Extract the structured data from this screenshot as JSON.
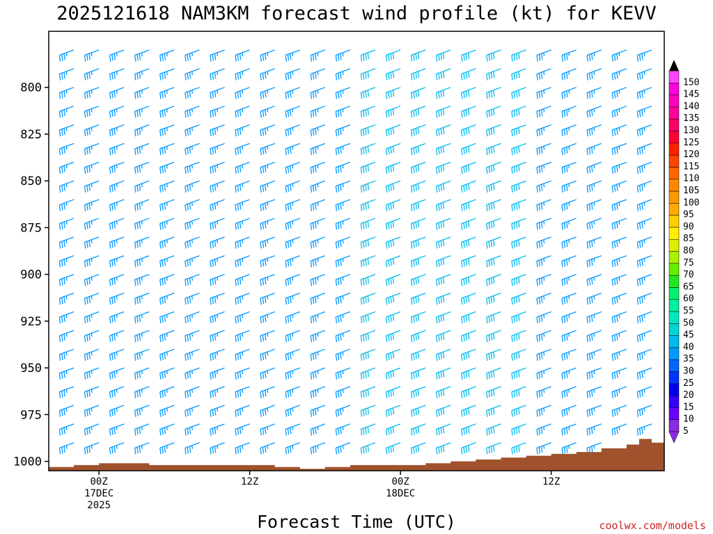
{
  "chart_data": {
    "type": "wind-barb-profile",
    "title": "2025121618 NAM3KM forecast wind profile (kt) for KEVV",
    "xlabel": "Forecast Time (UTC)",
    "credit": "coolwx.com/models",
    "y_axis": {
      "label_units": "hPa",
      "range": [
        1005,
        770
      ],
      "ticks": [
        800,
        825,
        850,
        875,
        900,
        925,
        950,
        975,
        1000
      ]
    },
    "x_axis": {
      "range_hours": [
        -4,
        45
      ],
      "ticks": [
        {
          "hour": 0,
          "lines": [
            "00Z",
            "17DEC",
            "2025"
          ]
        },
        {
          "hour": 12,
          "lines": [
            "12Z"
          ]
        },
        {
          "hour": 24,
          "lines": [
            "00Z",
            "18DEC"
          ]
        },
        {
          "hour": 36,
          "lines": [
            "12Z"
          ]
        },
        {
          "hour": 48,
          "lines": [
            "00Z",
            "19DEC"
          ]
        }
      ]
    },
    "colorbar": {
      "label_units": "kt",
      "levels": [
        5,
        10,
        15,
        20,
        25,
        30,
        35,
        40,
        45,
        50,
        55,
        60,
        65,
        70,
        75,
        80,
        85,
        90,
        95,
        100,
        105,
        110,
        115,
        120,
        125,
        130,
        135,
        140,
        145,
        150
      ],
      "colors": [
        "#8a2be2",
        "#6a00ff",
        "#3300ff",
        "#0000ee",
        "#0033ff",
        "#0066ff",
        "#0099ff",
        "#00bbee",
        "#00d4d4",
        "#00e8c0",
        "#00f0a0",
        "#00f070",
        "#22e822",
        "#66ee00",
        "#aaee00",
        "#ddee00",
        "#ffee00",
        "#ffcc00",
        "#ffaa00",
        "#ff9900",
        "#ff8800",
        "#ff6600",
        "#ff4400",
        "#ff2200",
        "#ff0033",
        "#ff0066",
        "#ff0099",
        "#ff00bb",
        "#ff00dd",
        "#ff44ff"
      ]
    },
    "surface": {
      "color": "#a0522d",
      "hours": [
        -4,
        -2,
        0,
        2,
        4,
        6,
        8,
        10,
        12,
        14,
        16,
        18,
        20,
        22,
        24,
        26,
        28,
        30,
        32,
        34,
        36,
        38,
        40,
        42,
        43,
        44,
        45,
        46,
        48,
        50
      ],
      "pressure": [
        1003,
        1002,
        1001,
        1001,
        1002,
        1002,
        1002,
        1002,
        1002,
        1003,
        1004,
        1003,
        1002,
        1002,
        1002,
        1001,
        1000,
        999,
        998,
        997,
        996,
        995,
        993,
        991,
        988,
        990,
        992,
        994,
        994,
        994
      ]
    },
    "time_hours": [
      -4,
      -2,
      0,
      2,
      4,
      6,
      8,
      10,
      12,
      14,
      16,
      18,
      20,
      22,
      24,
      26,
      28,
      30,
      32,
      34,
      36,
      38,
      40,
      42,
      44,
      46,
      48,
      50
    ],
    "pressure_levels": [
      780,
      790,
      800,
      810,
      820,
      830,
      840,
      850,
      860,
      870,
      880,
      890,
      900,
      910,
      920,
      930,
      940,
      950,
      960,
      970,
      980,
      990
    ],
    "speed_kt": [
      [
        35,
        35,
        35,
        35,
        35,
        35,
        35,
        35,
        35,
        35,
        35,
        35,
        35,
        40,
        40,
        40,
        40,
        40,
        40,
        40,
        35,
        35,
        35,
        35,
        35,
        35,
        35,
        35
      ],
      [
        35,
        35,
        35,
        35,
        35,
        35,
        35,
        35,
        35,
        35,
        35,
        35,
        35,
        40,
        40,
        40,
        40,
        40,
        40,
        40,
        35,
        35,
        35,
        35,
        35,
        35,
        35,
        35
      ],
      [
        35,
        35,
        35,
        35,
        35,
        35,
        35,
        35,
        35,
        35,
        35,
        35,
        35,
        40,
        40,
        40,
        40,
        40,
        40,
        40,
        35,
        35,
        35,
        35,
        35,
        35,
        35,
        35
      ],
      [
        35,
        35,
        35,
        35,
        35,
        35,
        35,
        35,
        35,
        35,
        35,
        35,
        35,
        40,
        40,
        40,
        40,
        40,
        40,
        40,
        35,
        35,
        35,
        35,
        35,
        35,
        35,
        35
      ],
      [
        35,
        35,
        35,
        35,
        35,
        35,
        35,
        35,
        35,
        35,
        35,
        35,
        35,
        40,
        40,
        40,
        40,
        40,
        40,
        40,
        35,
        35,
        35,
        35,
        35,
        35,
        35,
        35
      ],
      [
        35,
        35,
        35,
        35,
        35,
        35,
        35,
        35,
        35,
        35,
        35,
        35,
        35,
        40,
        40,
        40,
        40,
        40,
        40,
        40,
        35,
        35,
        35,
        35,
        35,
        35,
        35,
        35
      ],
      [
        35,
        35,
        35,
        35,
        35,
        35,
        35,
        35,
        35,
        35,
        35,
        35,
        35,
        40,
        40,
        40,
        40,
        40,
        40,
        40,
        35,
        35,
        35,
        35,
        35,
        35,
        35,
        35
      ],
      [
        35,
        35,
        35,
        35,
        35,
        35,
        35,
        35,
        35,
        35,
        35,
        35,
        35,
        40,
        40,
        40,
        40,
        40,
        40,
        40,
        35,
        35,
        35,
        35,
        35,
        35,
        35,
        35
      ],
      [
        35,
        35,
        35,
        35,
        35,
        35,
        35,
        35,
        35,
        35,
        35,
        35,
        35,
        40,
        40,
        40,
        40,
        40,
        40,
        40,
        35,
        35,
        35,
        35,
        35,
        35,
        35,
        35
      ],
      [
        35,
        35,
        35,
        35,
        35,
        35,
        35,
        35,
        35,
        35,
        35,
        35,
        35,
        40,
        40,
        40,
        40,
        40,
        40,
        40,
        35,
        35,
        35,
        35,
        35,
        35,
        35,
        35
      ],
      [
        35,
        35,
        35,
        35,
        35,
        35,
        35,
        35,
        35,
        35,
        35,
        35,
        35,
        40,
        40,
        40,
        40,
        40,
        40,
        40,
        35,
        35,
        35,
        35,
        35,
        35,
        35,
        35
      ],
      [
        35,
        35,
        35,
        35,
        35,
        35,
        35,
        35,
        35,
        35,
        35,
        35,
        35,
        40,
        40,
        40,
        40,
        40,
        40,
        40,
        35,
        35,
        35,
        35,
        35,
        35,
        35,
        35
      ],
      [
        35,
        35,
        35,
        35,
        35,
        35,
        35,
        35,
        35,
        35,
        35,
        35,
        35,
        40,
        40,
        40,
        40,
        40,
        40,
        40,
        35,
        35,
        35,
        35,
        35,
        35,
        35,
        35
      ],
      [
        35,
        35,
        35,
        35,
        35,
        35,
        35,
        35,
        35,
        35,
        35,
        35,
        35,
        40,
        40,
        40,
        40,
        40,
        40,
        40,
        35,
        35,
        35,
        35,
        35,
        35,
        35,
        35
      ],
      [
        35,
        35,
        35,
        35,
        35,
        35,
        35,
        35,
        35,
        35,
        35,
        35,
        35,
        40,
        40,
        40,
        40,
        40,
        40,
        40,
        35,
        35,
        35,
        35,
        35,
        35,
        35,
        35
      ],
      [
        35,
        35,
        35,
        35,
        35,
        35,
        35,
        35,
        35,
        35,
        35,
        35,
        35,
        40,
        40,
        40,
        40,
        40,
        40,
        40,
        35,
        35,
        35,
        35,
        35,
        35,
        35,
        35
      ],
      [
        35,
        35,
        35,
        35,
        35,
        35,
        35,
        35,
        35,
        35,
        35,
        35,
        35,
        40,
        40,
        40,
        40,
        40,
        40,
        40,
        35,
        35,
        35,
        35,
        35,
        35,
        35,
        35
      ],
      [
        35,
        35,
        35,
        35,
        35,
        35,
        35,
        35,
        35,
        35,
        35,
        35,
        35,
        40,
        40,
        40,
        40,
        40,
        40,
        40,
        35,
        35,
        35,
        35,
        35,
        35,
        35,
        35
      ],
      [
        35,
        35,
        35,
        35,
        35,
        35,
        35,
        35,
        35,
        35,
        35,
        35,
        35,
        40,
        40,
        40,
        40,
        40,
        40,
        40,
        35,
        35,
        35,
        35,
        35,
        35,
        35,
        35
      ],
      [
        35,
        35,
        35,
        35,
        35,
        35,
        35,
        35,
        35,
        35,
        35,
        35,
        35,
        40,
        40,
        40,
        40,
        40,
        40,
        40,
        35,
        35,
        35,
        35,
        35,
        35,
        35,
        35
      ],
      [
        35,
        35,
        35,
        35,
        35,
        35,
        35,
        35,
        35,
        35,
        35,
        35,
        35,
        40,
        40,
        40,
        40,
        40,
        40,
        40,
        35,
        35,
        35,
        35,
        35,
        35,
        35,
        35
      ],
      [
        35,
        35,
        35,
        35,
        35,
        35,
        35,
        35,
        35,
        35,
        35,
        35,
        35,
        40,
        40,
        40,
        40,
        40,
        40,
        40,
        35,
        35,
        35,
        35,
        35,
        35,
        35,
        35
      ]
    ],
    "direction_deg": [
      [
        250,
        250,
        250,
        250,
        250,
        250,
        250,
        250,
        250,
        250,
        250,
        250,
        250,
        250,
        250,
        250,
        250,
        250,
        250,
        250,
        250,
        250,
        250,
        250,
        250,
        250,
        250,
        250
      ],
      [
        250,
        250,
        250,
        250,
        250,
        250,
        250,
        250,
        250,
        250,
        250,
        250,
        250,
        250,
        250,
        250,
        250,
        250,
        250,
        250,
        250,
        250,
        250,
        250,
        250,
        250,
        250,
        250
      ],
      [
        250,
        250,
        250,
        250,
        250,
        250,
        250,
        250,
        250,
        250,
        250,
        250,
        250,
        250,
        250,
        250,
        250,
        250,
        250,
        250,
        250,
        250,
        250,
        250,
        250,
        250,
        250,
        250
      ],
      [
        250,
        250,
        250,
        250,
        250,
        250,
        250,
        250,
        250,
        250,
        250,
        250,
        250,
        250,
        250,
        250,
        250,
        250,
        250,
        250,
        250,
        250,
        250,
        250,
        250,
        250,
        250,
        250
      ],
      [
        250,
        250,
        250,
        250,
        250,
        250,
        250,
        250,
        250,
        250,
        250,
        250,
        250,
        250,
        250,
        250,
        250,
        250,
        250,
        250,
        250,
        250,
        250,
        250,
        250,
        250,
        250,
        250
      ],
      [
        250,
        250,
        250,
        250,
        250,
        250,
        250,
        250,
        250,
        250,
        250,
        250,
        250,
        250,
        250,
        250,
        250,
        250,
        250,
        250,
        250,
        250,
        250,
        250,
        250,
        250,
        250,
        250
      ],
      [
        250,
        250,
        250,
        250,
        250,
        250,
        250,
        250,
        250,
        250,
        250,
        250,
        250,
        250,
        250,
        250,
        250,
        250,
        250,
        250,
        250,
        250,
        250,
        250,
        250,
        250,
        250,
        250
      ],
      [
        250,
        250,
        250,
        250,
        250,
        250,
        250,
        250,
        250,
        250,
        250,
        250,
        250,
        250,
        250,
        250,
        250,
        250,
        250,
        250,
        250,
        250,
        250,
        250,
        250,
        250,
        250,
        250
      ],
      [
        250,
        250,
        250,
        250,
        250,
        250,
        250,
        250,
        250,
        250,
        250,
        250,
        250,
        250,
        250,
        250,
        250,
        250,
        250,
        250,
        250,
        250,
        250,
        250,
        250,
        250,
        250,
        250
      ],
      [
        250,
        250,
        250,
        250,
        250,
        250,
        250,
        250,
        250,
        250,
        250,
        250,
        250,
        250,
        250,
        250,
        250,
        250,
        250,
        250,
        250,
        250,
        250,
        250,
        250,
        250,
        250,
        250
      ],
      [
        250,
        250,
        250,
        250,
        250,
        250,
        250,
        250,
        250,
        250,
        250,
        250,
        250,
        250,
        250,
        250,
        250,
        250,
        250,
        250,
        250,
        250,
        250,
        250,
        250,
        250,
        250,
        250
      ],
      [
        250,
        250,
        250,
        250,
        250,
        250,
        250,
        250,
        250,
        250,
        250,
        250,
        250,
        250,
        250,
        250,
        250,
        250,
        250,
        250,
        250,
        250,
        250,
        250,
        250,
        250,
        250,
        250
      ],
      [
        250,
        250,
        250,
        250,
        250,
        250,
        250,
        250,
        250,
        250,
        250,
        250,
        250,
        250,
        250,
        250,
        250,
        250,
        250,
        250,
        250,
        250,
        250,
        250,
        250,
        250,
        250,
        250
      ],
      [
        250,
        250,
        250,
        250,
        250,
        250,
        250,
        250,
        250,
        250,
        250,
        250,
        250,
        250,
        250,
        250,
        250,
        250,
        250,
        250,
        250,
        250,
        250,
        250,
        250,
        250,
        250,
        250
      ],
      [
        250,
        250,
        250,
        250,
        250,
        250,
        250,
        250,
        250,
        250,
        250,
        250,
        250,
        250,
        250,
        250,
        250,
        250,
        250,
        250,
        250,
        250,
        250,
        250,
        250,
        250,
        250,
        250
      ],
      [
        250,
        250,
        250,
        250,
        250,
        250,
        250,
        250,
        250,
        250,
        250,
        250,
        250,
        250,
        250,
        250,
        250,
        250,
        250,
        250,
        250,
        250,
        250,
        250,
        250,
        250,
        250,
        250
      ],
      [
        250,
        250,
        250,
        250,
        250,
        250,
        250,
        250,
        250,
        250,
        250,
        250,
        250,
        250,
        250,
        250,
        250,
        250,
        250,
        250,
        250,
        250,
        250,
        250,
        250,
        250,
        250,
        250
      ],
      [
        250,
        250,
        250,
        250,
        250,
        250,
        250,
        250,
        250,
        250,
        250,
        250,
        250,
        250,
        250,
        250,
        250,
        250,
        250,
        250,
        250,
        250,
        250,
        250,
        250,
        250,
        250,
        250
      ],
      [
        250,
        250,
        250,
        250,
        250,
        250,
        250,
        250,
        250,
        250,
        250,
        250,
        250,
        250,
        250,
        250,
        250,
        250,
        250,
        250,
        250,
        250,
        250,
        250,
        250,
        250,
        250,
        250
      ],
      [
        250,
        250,
        250,
        250,
        250,
        250,
        250,
        250,
        250,
        250,
        250,
        250,
        250,
        250,
        250,
        250,
        250,
        250,
        250,
        250,
        250,
        250,
        250,
        250,
        250,
        250,
        250,
        250
      ],
      [
        250,
        250,
        250,
        250,
        250,
        250,
        250,
        250,
        250,
        250,
        250,
        250,
        250,
        250,
        250,
        250,
        250,
        250,
        250,
        250,
        250,
        250,
        250,
        250,
        250,
        250,
        250,
        250
      ],
      [
        250,
        250,
        250,
        250,
        250,
        250,
        250,
        250,
        250,
        250,
        250,
        250,
        250,
        250,
        250,
        250,
        250,
        250,
        250,
        250,
        250,
        250,
        250,
        250,
        250,
        250,
        250,
        250
      ]
    ]
  }
}
